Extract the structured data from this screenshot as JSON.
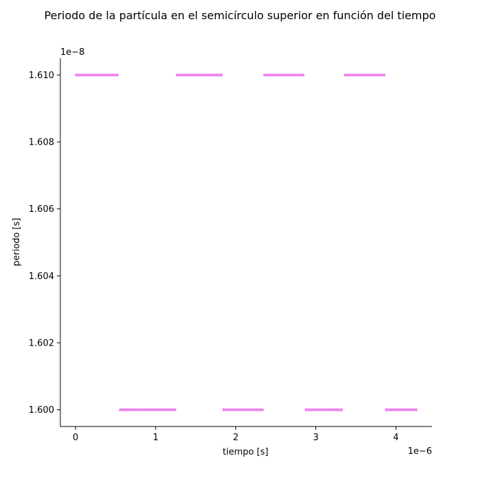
{
  "chart_data": {
    "type": "scatter",
    "title": "Periodo de la partícula en el semicírculo superior en función del tiempo",
    "xlabel": "tiempo [s]",
    "ylabel": "periodo [s]",
    "x_offset_label": "1e−6",
    "y_offset_label": "1e−8",
    "xlim": [
      -1.9e-07,
      4.45e-06
    ],
    "ylim": [
      1.5995e-08,
      1.6105e-08
    ],
    "x_ticks": [
      0,
      1e-06,
      2e-06,
      3e-06,
      4e-06
    ],
    "x_tick_labels": [
      "0",
      "1",
      "2",
      "3",
      "4"
    ],
    "y_ticks": [
      1.6e-08,
      1.602e-08,
      1.604e-08,
      1.606e-08,
      1.608e-08,
      1.61e-08
    ],
    "y_tick_labels": [
      "1.600",
      "1.602",
      "1.604",
      "1.606",
      "1.608",
      "1.610"
    ],
    "grid": false,
    "marker_color": "#ee82ee",
    "series": [
      {
        "segments": [
          {
            "x_start": 1e-08,
            "x_end": 5.2e-07,
            "y": 1.61e-08
          },
          {
            "x_start": 5.6e-07,
            "x_end": 1.24e-06,
            "y": 1.6e-08
          },
          {
            "x_start": 1.27e-06,
            "x_end": 1.82e-06,
            "y": 1.61e-08
          },
          {
            "x_start": 1.85e-06,
            "x_end": 2.33e-06,
            "y": 1.6e-08
          },
          {
            "x_start": 2.36e-06,
            "x_end": 2.84e-06,
            "y": 1.61e-08
          },
          {
            "x_start": 2.88e-06,
            "x_end": 3.32e-06,
            "y": 1.6e-08
          },
          {
            "x_start": 3.37e-06,
            "x_end": 3.85e-06,
            "y": 1.61e-08
          },
          {
            "x_start": 3.88e-06,
            "x_end": 4.25e-06,
            "y": 1.6e-08
          }
        ],
        "spacing": 3.1e-08
      }
    ]
  }
}
